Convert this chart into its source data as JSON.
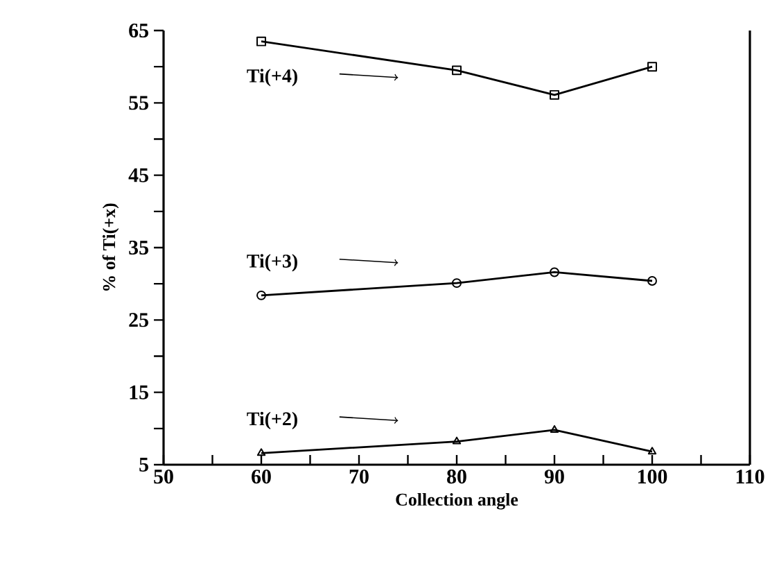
{
  "chart_data": {
    "type": "line",
    "xlabel": "Collection angle",
    "ylabel": "% of Ti(+x)",
    "x": [
      60,
      80,
      90,
      100
    ],
    "series": [
      {
        "name": "Ti(+4)",
        "color": "#000000",
        "marker": "square",
        "values": [
          63.5,
          59.5,
          56.1,
          60.0
        ]
      },
      {
        "name": "Ti(+3)",
        "color": "#000000",
        "marker": "circle",
        "values": [
          28.4,
          30.1,
          31.6,
          30.4
        ]
      },
      {
        "name": "Ti(+2)",
        "color": "#000000",
        "marker": "triangle",
        "values": [
          6.6,
          8.2,
          9.8,
          6.8
        ]
      }
    ],
    "xlim": [
      50,
      110
    ],
    "ylim": [
      5,
      65
    ],
    "xticks": [
      50,
      {
        "value": 55,
        "label": null
      },
      60,
      {
        "value": 65,
        "label": null
      },
      70,
      {
        "value": 75,
        "label": null
      },
      80,
      {
        "value": 85,
        "label": null
      },
      90,
      {
        "value": 95,
        "label": null
      },
      100,
      {
        "value": 105,
        "label": null
      },
      110
    ],
    "yticks": [
      5,
      {
        "value": 10,
        "label": null
      },
      15,
      {
        "value": 20,
        "label": null
      },
      25,
      {
        "value": 30,
        "label": null
      },
      35,
      {
        "value": 40,
        "label": null
      },
      45,
      {
        "value": 50,
        "label": null
      },
      55,
      {
        "value": 60,
        "label": null
      },
      65
    ],
    "grid": false,
    "legend": "left",
    "line_style": "solid"
  }
}
